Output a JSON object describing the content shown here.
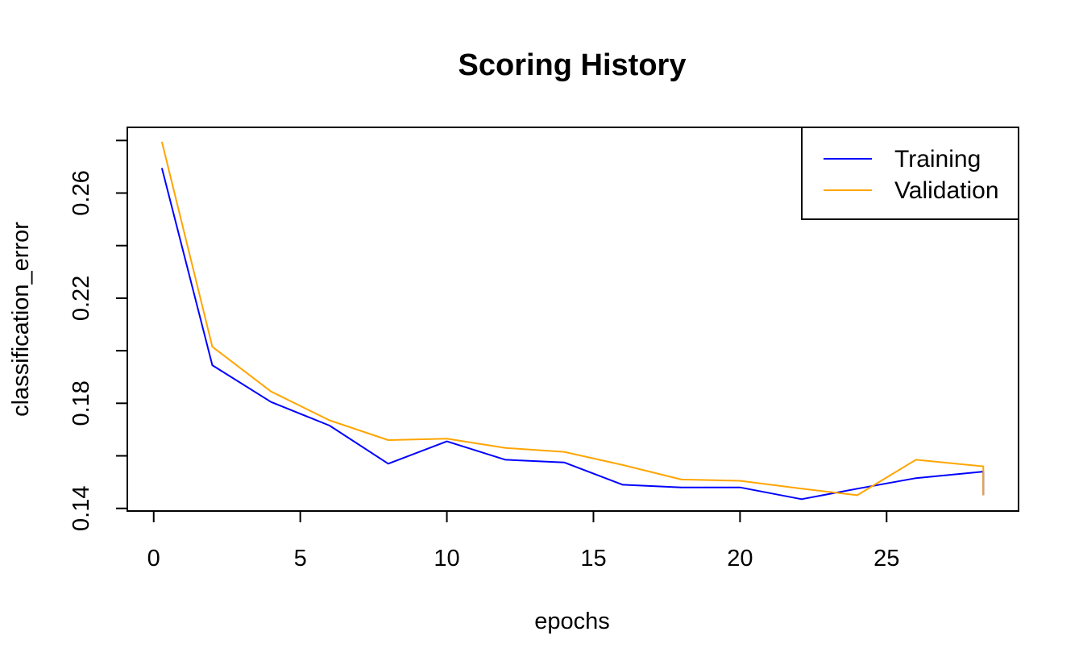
{
  "chart_data": {
    "type": "line",
    "title": "Scoring History",
    "xlabel": "epochs",
    "ylabel": "classification_error",
    "xlim": [
      -0.9,
      29.5
    ],
    "ylim": [
      0.139,
      0.285
    ],
    "x_ticks": [
      0,
      5,
      10,
      15,
      20,
      25
    ],
    "y_ticks": [
      0.14,
      0.18,
      0.22,
      0.26
    ],
    "y_tick_labels": [
      "0.14",
      "0.18",
      "0.22",
      "0.26"
    ],
    "y_minor_ticks": [
      0.14,
      0.16,
      0.18,
      0.2,
      0.22,
      0.24,
      0.26,
      0.28
    ],
    "grid": false,
    "legend_position": "top-right",
    "series": [
      {
        "name": "Training",
        "color": "#0000ff",
        "x": [
          0.28,
          2.0,
          4.0,
          6.0,
          8.0,
          10.0,
          12.0,
          14.0,
          16.0,
          18.0,
          20.0,
          22.1,
          24.0,
          26.0,
          28.3,
          28.3
        ],
        "y": [
          0.2695,
          0.1945,
          0.1805,
          0.1715,
          0.157,
          0.1655,
          0.1585,
          0.1575,
          0.149,
          0.148,
          0.148,
          0.1435,
          0.1475,
          0.1515,
          0.154,
          0.145
        ]
      },
      {
        "name": "Validation",
        "color": "#ffa500",
        "x": [
          0.28,
          2.0,
          4.0,
          6.0,
          8.0,
          10.0,
          12.0,
          14.0,
          16.0,
          18.0,
          20.0,
          22.1,
          24.0,
          26.0,
          28.3,
          28.3
        ],
        "y": [
          0.2795,
          0.2015,
          0.1845,
          0.1735,
          0.166,
          0.1665,
          0.163,
          0.1615,
          0.1565,
          0.151,
          0.1505,
          0.1475,
          0.145,
          0.1585,
          0.156,
          0.145
        ]
      }
    ]
  }
}
